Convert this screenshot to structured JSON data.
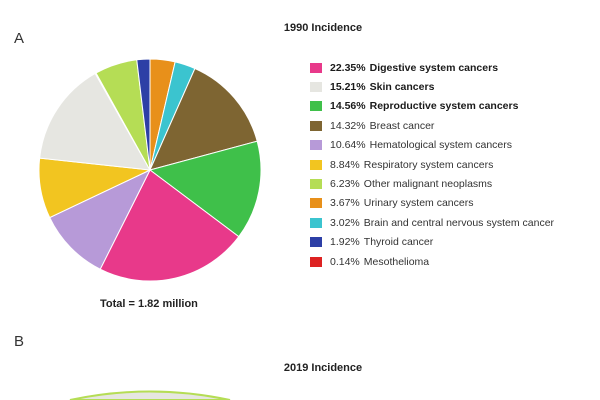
{
  "panels": {
    "a": "A",
    "b": "B"
  },
  "chart_data": [
    {
      "type": "pie",
      "title": "1990 Incidence",
      "total_label": "Total = 1.82 million",
      "slices": [
        {
          "label": "Digestive system cancers",
          "pct_text": "22.35%",
          "value": 22.35,
          "color": "#e8398a",
          "bold": true
        },
        {
          "label": "Skin cancers",
          "pct_text": "15.21%",
          "value": 15.21,
          "color": "#e6e6e1",
          "bold": true
        },
        {
          "label": "Reproductive system cancers",
          "pct_text": "14.56%",
          "value": 14.56,
          "color": "#3fc04a",
          "bold": true
        },
        {
          "label": "Breast cancer",
          "pct_text": "14.32%",
          "value": 14.32,
          "color": "#7e6532",
          "bold": false
        },
        {
          "label": "Hematological system cancers",
          "pct_text": "10.64%",
          "value": 10.64,
          "color": "#b79ad8",
          "bold": false
        },
        {
          "label": "Respiratory system cancers",
          "pct_text": "8.84%",
          "value": 8.84,
          "color": "#f2c520",
          "bold": false
        },
        {
          "label": "Other malignant neoplasms",
          "pct_text": "6.23%",
          "value": 6.23,
          "color": "#b5dd55",
          "bold": false
        },
        {
          "label": "Urinary system cancers",
          "pct_text": "3.67%",
          "value": 3.67,
          "color": "#e8901a",
          "bold": false
        },
        {
          "label": "Brain and central nervous system cancer",
          "pct_text": "3.02%",
          "value": 3.02,
          "color": "#3bc4cf",
          "bold": false
        },
        {
          "label": "Thyroid cancer",
          "pct_text": "1.92%",
          "value": 1.92,
          "color": "#2d3fa6",
          "bold": false
        },
        {
          "label": "Mesothelioma",
          "pct_text": "0.14%",
          "value": 0.14,
          "color": "#dd2222",
          "bold": false
        }
      ],
      "slice_order_clockwise_from_top": [
        "Urinary system cancers",
        "Brain and central nervous system cancer",
        "Breast cancer",
        "Reproductive system cancers",
        "Digestive system cancers",
        "Hematological system cancers",
        "Respiratory system cancers",
        "Skin cancers",
        "Mesothelioma",
        "Other malignant neoplasms",
        "Thyroid cancer"
      ],
      "legend_position": "right"
    },
    {
      "type": "pie",
      "title": "2019 Incidence"
    }
  ]
}
